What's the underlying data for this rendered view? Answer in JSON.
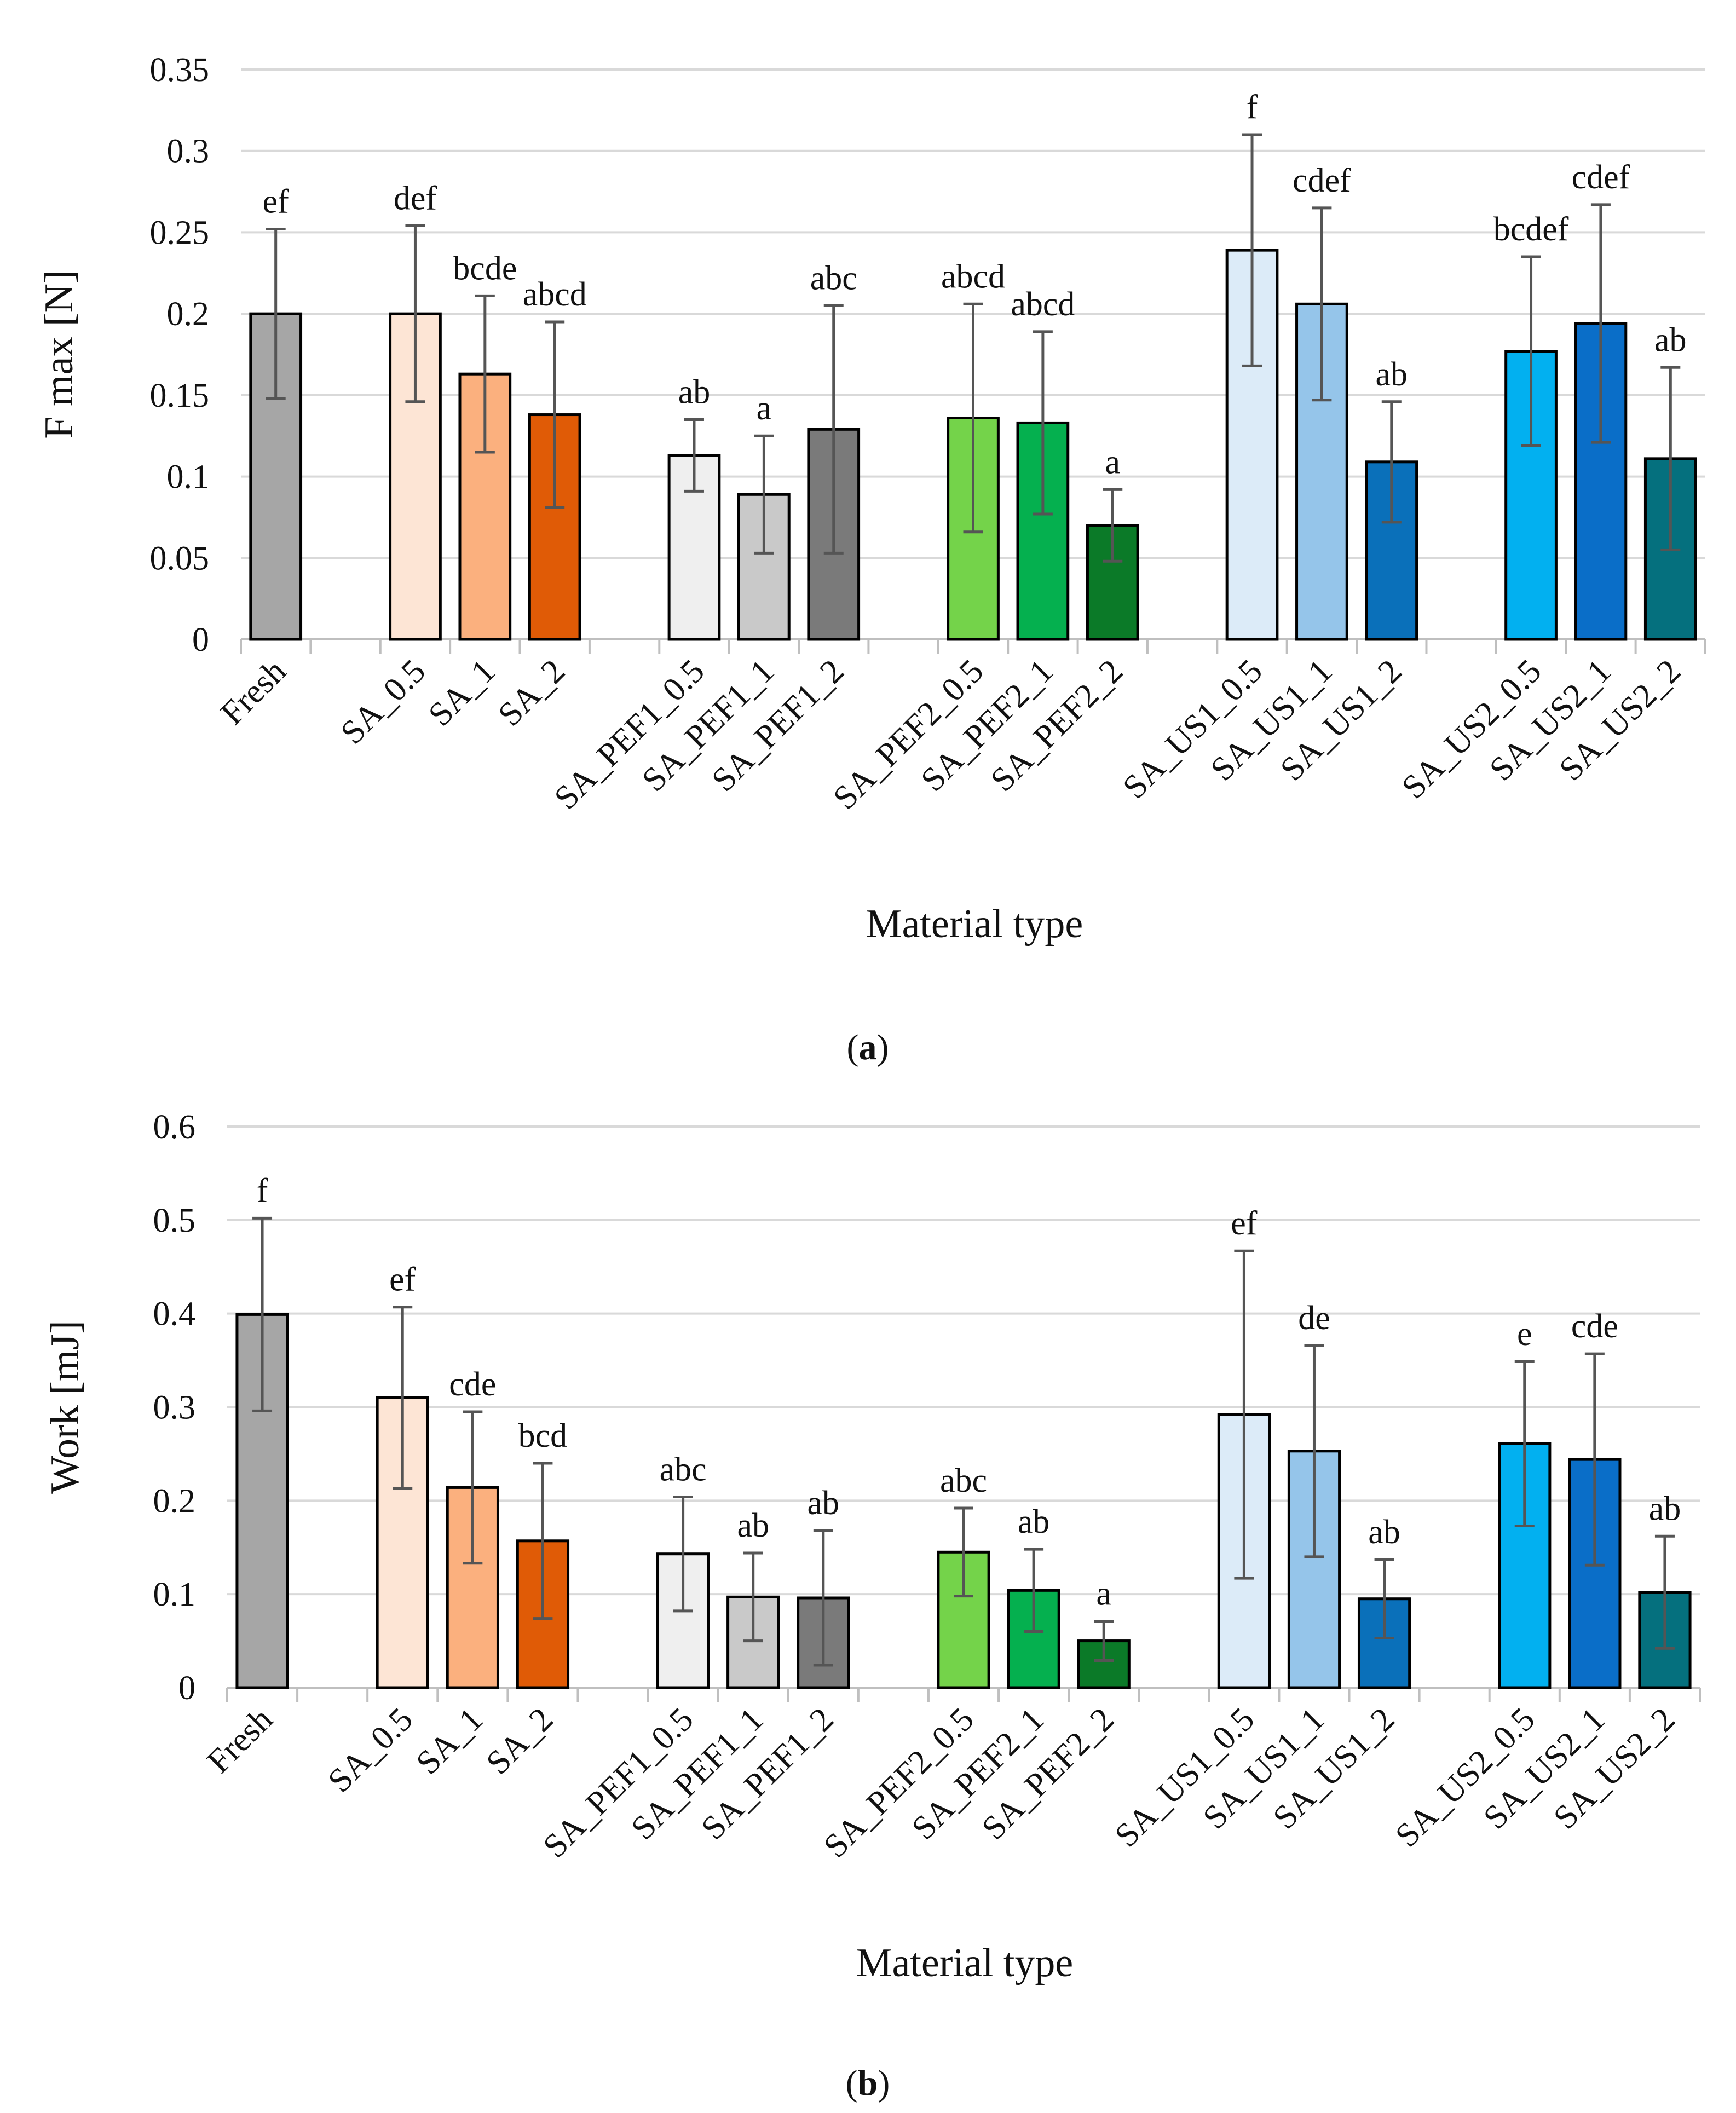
{
  "colors": {
    "Fresh": "#a6a6a6",
    "SA_0.5": "#fde5d5",
    "SA_1": "#fbb07e",
    "SA_2": "#e05b06",
    "SA_PEF1_0.5": "#efefef",
    "SA_PEF1_1": "#c9c9c9",
    "SA_PEF1_2": "#7a7a7a",
    "SA_PEF2_0.5": "#74d34a",
    "SA_PEF2_1": "#05b04f",
    "SA_PEF2_2": "#0b7a28",
    "SA_US1_0.5": "#dcebf8",
    "SA_US1_1": "#95c5ea",
    "SA_US1_2": "#0a70ba",
    "SA_US2_0.5": "#02b0f0",
    "SA_US2_1": "#0a6ec8",
    "SA_US2_2": "#05707e",
    "error_bar": "#555555",
    "grid": "#d9d9d9"
  },
  "chart_data": [
    {
      "id": "a",
      "panel_label": "a",
      "type": "bar",
      "title": "",
      "xlabel": "Material type",
      "ylabel": "F max [N]",
      "ylim": [
        0,
        0.35
      ],
      "yticks": [
        "0",
        "0.05",
        "0.1",
        "0.15",
        "0.2",
        "0.25",
        "0.3",
        "0.35"
      ],
      "grid": true,
      "groups": [
        [
          "Fresh"
        ],
        [
          "SA_0.5",
          "SA_1",
          "SA_2"
        ],
        [
          "SA_PEF1_0.5",
          "SA_PEF1_1",
          "SA_PEF1_2"
        ],
        [
          "SA_PEF2_0.5",
          "SA_PEF2_1",
          "SA_PEF2_2"
        ],
        [
          "SA_US1_0.5",
          "SA_US1_1",
          "SA_US1_2"
        ],
        [
          "SA_US2_0.5",
          "SA_US2_1",
          "SA_US2_2"
        ]
      ],
      "categories": [
        "Fresh",
        "SA_0.5",
        "SA_1",
        "SA_2",
        "SA_PEF1_0.5",
        "SA_PEF1_1",
        "SA_PEF1_2",
        "SA_PEF2_0.5",
        "SA_PEF2_1",
        "SA_PEF2_2",
        "SA_US1_0.5",
        "SA_US1_1",
        "SA_US1_2",
        "SA_US2_0.5",
        "SA_US2_1",
        "SA_US2_2"
      ],
      "values": [
        0.2,
        0.2,
        0.163,
        0.138,
        0.113,
        0.089,
        0.129,
        0.136,
        0.133,
        0.07,
        0.239,
        0.206,
        0.109,
        0.177,
        0.194,
        0.111
      ],
      "errors": [
        0.052,
        0.054,
        0.048,
        0.057,
        0.022,
        0.036,
        0.076,
        0.07,
        0.056,
        0.022,
        0.071,
        0.059,
        0.037,
        0.058,
        0.073,
        0.056
      ],
      "letters": [
        "ef",
        "def",
        "bcde",
        "abcd",
        "ab",
        "a",
        "abc",
        "abcd",
        "abcd",
        "a",
        "f",
        "cdef",
        "ab",
        "bcdef",
        "cdef",
        "ab"
      ]
    },
    {
      "id": "b",
      "panel_label": "b",
      "type": "bar",
      "title": "",
      "xlabel": "Material type",
      "ylabel": "Work [mJ]",
      "ylim": [
        0,
        0.6
      ],
      "yticks": [
        "0",
        "0.1",
        "0.2",
        "0.3",
        "0.4",
        "0.5",
        "0.6"
      ],
      "grid": true,
      "groups": [
        [
          "Fresh"
        ],
        [
          "SA_0.5",
          "SA_1",
          "SA_2"
        ],
        [
          "SA_PEF1_0.5",
          "SA_PEF1_1",
          "SA_PEF1_2"
        ],
        [
          "SA_PEF2_0.5",
          "SA_PEF2_1",
          "SA_PEF2_2"
        ],
        [
          "SA_US1_0.5",
          "SA_US1_1",
          "SA_US1_2"
        ],
        [
          "SA_US2_0.5",
          "SA_US2_1",
          "SA_US2_2"
        ]
      ],
      "categories": [
        "Fresh",
        "SA_0.5",
        "SA_1",
        "SA_2",
        "SA_PEF1_0.5",
        "SA_PEF1_1",
        "SA_PEF1_2",
        "SA_PEF2_0.5",
        "SA_PEF2_1",
        "SA_PEF2_2",
        "SA_US1_0.5",
        "SA_US1_1",
        "SA_US1_2",
        "SA_US2_0.5",
        "SA_US2_1",
        "SA_US2_2"
      ],
      "values": [
        0.399,
        0.31,
        0.214,
        0.157,
        0.143,
        0.097,
        0.096,
        0.145,
        0.104,
        0.05,
        0.292,
        0.253,
        0.095,
        0.261,
        0.244,
        0.102
      ],
      "errors": [
        0.103,
        0.097,
        0.081,
        0.083,
        0.061,
        0.047,
        0.072,
        0.047,
        0.044,
        0.021,
        0.175,
        0.113,
        0.042,
        0.088,
        0.113,
        0.06
      ],
      "letters": [
        "f",
        "ef",
        "cde",
        "bcd",
        "abc",
        "ab",
        "ab",
        "abc",
        "ab",
        "a",
        "ef",
        "de",
        "ab",
        "e",
        "cde",
        "ab"
      ]
    }
  ]
}
